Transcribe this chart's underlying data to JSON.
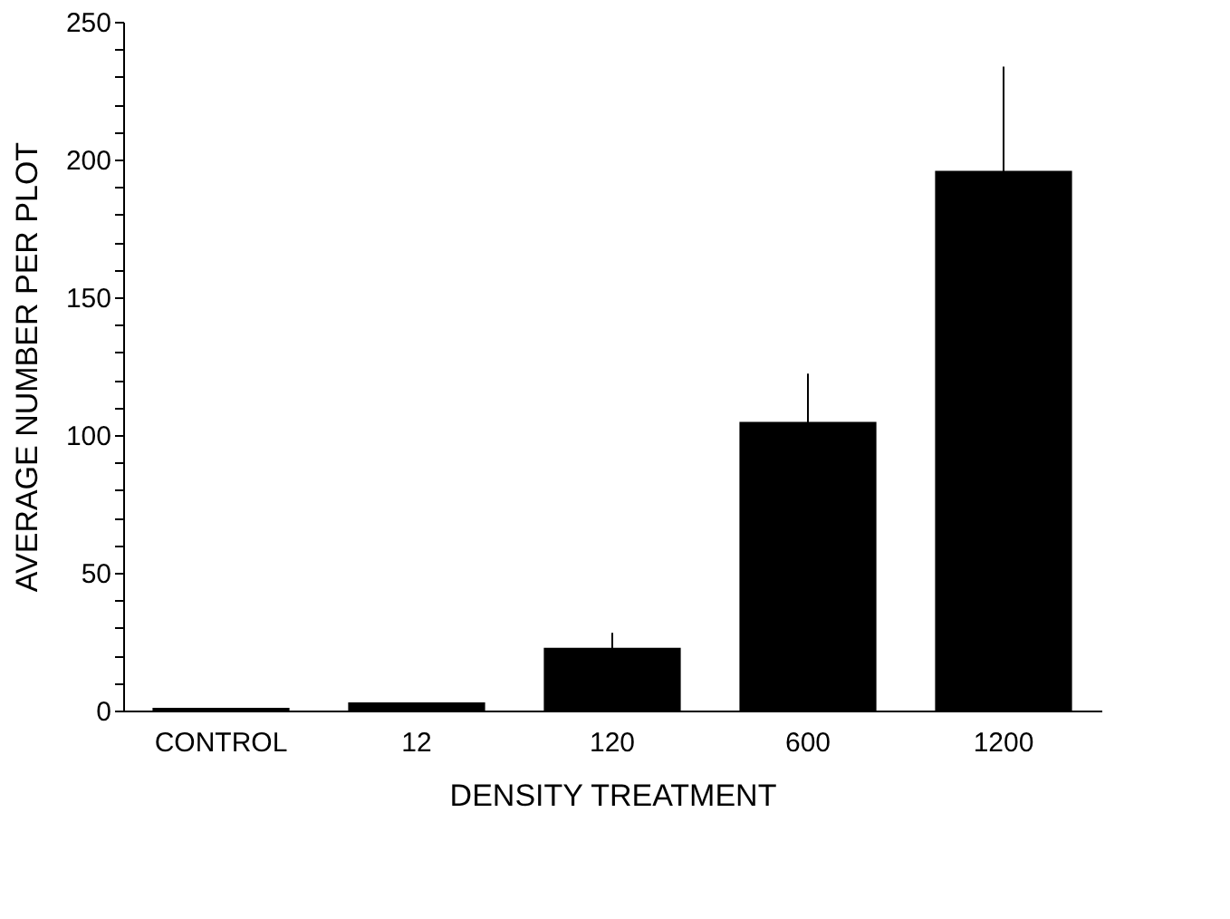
{
  "chart_data": {
    "type": "bar",
    "xlabel": "DENSITY TREATMENT",
    "ylabel": "AVERAGE NUMBER PER PLOT",
    "categories": [
      "CONTROL",
      "12",
      "120",
      "600",
      "1200"
    ],
    "values": [
      1,
      3,
      22.8,
      104.8,
      195.9
    ],
    "errors": [
      null,
      null,
      5.4,
      17.5,
      37.8
    ],
    "color": "#000000",
    "ylim": [
      0,
      250
    ],
    "yticks": [
      0,
      {
        "value": 10,
        "label": null
      },
      {
        "value": 20,
        "label": null
      },
      {
        "value": 30,
        "label": null
      },
      {
        "value": 40,
        "label": null
      },
      50,
      {
        "value": 60,
        "label": null
      },
      {
        "value": 70,
        "label": null
      },
      {
        "value": 80,
        "label": null
      },
      {
        "value": 90,
        "label": null
      },
      100,
      {
        "value": 110,
        "label": null
      },
      {
        "value": 120,
        "label": null
      },
      {
        "value": 130,
        "label": null
      },
      {
        "value": 140,
        "label": null
      },
      150,
      {
        "value": 160,
        "label": null
      },
      {
        "value": 170,
        "label": null
      },
      {
        "value": 180,
        "label": null
      },
      {
        "value": 190,
        "label": null
      },
      200,
      {
        "value": 210,
        "label": null
      },
      {
        "value": 220,
        "label": null
      },
      {
        "value": 230,
        "label": null
      },
      {
        "value": 240,
        "label": null
      },
      250
    ],
    "grid": false
  }
}
